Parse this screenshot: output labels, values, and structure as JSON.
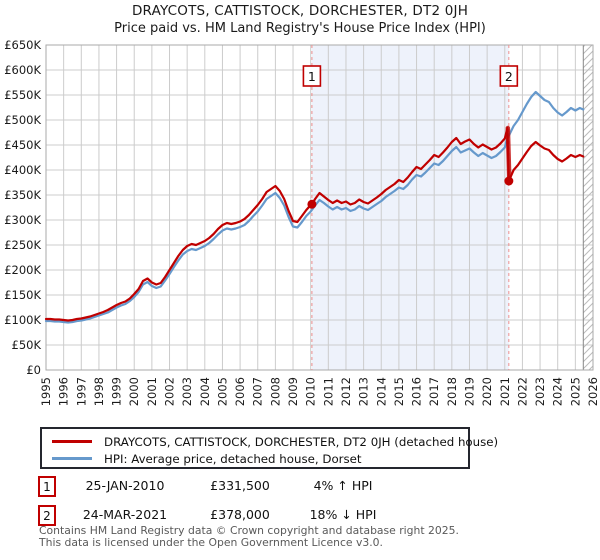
{
  "title": {
    "line1": "DRAYCOTS, CATTISTOCK, DORCHESTER, DT2 0JH",
    "line2": "Price paid vs. HM Land Registry's House Price Index (HPI)"
  },
  "legend": {
    "items": [
      {
        "label": "DRAYCOTS, CATTISTOCK, DORCHESTER, DT2 0JH (detached house)",
        "color": "#c00000"
      },
      {
        "label": "HPI: Average price, detached house, Dorset",
        "color": "#6699cc"
      }
    ]
  },
  "annotations": [
    {
      "index": "1",
      "date": "25-JAN-2010",
      "price": "£331,500",
      "hpi": "4% ↑ HPI"
    },
    {
      "index": "2",
      "date": "24-MAR-2021",
      "price": "£378,000",
      "hpi": "18% ↓ HPI"
    }
  ],
  "footer": {
    "line1": "Contains HM Land Registry data © Crown copyright and database right 2025.",
    "line2": "This data is licensed under the Open Government Licence v3.0."
  },
  "chart_data": {
    "type": "line",
    "title": "Price paid vs. HPI",
    "x_axis": {
      "range": [
        1995,
        2026
      ],
      "ticks": [
        1995,
        1996,
        1997,
        1998,
        1999,
        2000,
        2001,
        2002,
        2003,
        2004,
        2005,
        2006,
        2007,
        2008,
        2009,
        2010,
        2011,
        2012,
        2013,
        2014,
        2015,
        2016,
        2017,
        2018,
        2019,
        2020,
        2021,
        2022,
        2023,
        2024,
        2025,
        2026
      ]
    },
    "y_axis": {
      "unit": "GBP thousands",
      "range_k": [
        0,
        650
      ],
      "tick_step_k": 50,
      "tick_labels": [
        "£0",
        "£50K",
        "£100K",
        "£150K",
        "£200K",
        "£250K",
        "£300K",
        "£350K",
        "£400K",
        "£450K",
        "£500K",
        "£550K",
        "£600K",
        "£650K"
      ]
    },
    "grid": true,
    "legend_position": "bottom",
    "shaded_span": [
      2010.07,
      2021.23
    ],
    "future_span": [
      2025.45,
      2026
    ],
    "colors": {
      "grid": "#cccccc",
      "border": "#aaaaaa",
      "band": "#eef2fb",
      "dashed": "#ee8f8f",
      "hatch": "#bbbbbb",
      "hatch_edge": "#888888",
      "label": "#1a1a1a",
      "marker_text": "#111111"
    },
    "sales": [
      {
        "label": "1",
        "x": 2010.07,
        "y": 331.5
      },
      {
        "label": "2",
        "x": 2021.23,
        "y": 378,
        "spike_from": 484
      }
    ],
    "series": [
      {
        "name": "DRAYCOTS, CATTISTOCK, DORCHESTER, DT2 0JH (detached house)",
        "color": "#c00000",
        "points": [
          [
            1995.0,
            102
          ],
          [
            1995.25,
            102
          ],
          [
            1995.5,
            101
          ],
          [
            1995.75,
            101
          ],
          [
            1996.0,
            100
          ],
          [
            1996.25,
            99
          ],
          [
            1996.5,
            100
          ],
          [
            1996.75,
            102
          ],
          [
            1997.0,
            103
          ],
          [
            1997.25,
            105
          ],
          [
            1997.5,
            107
          ],
          [
            1997.75,
            110
          ],
          [
            1998.0,
            113
          ],
          [
            1998.25,
            116
          ],
          [
            1998.5,
            120
          ],
          [
            1998.75,
            125
          ],
          [
            1999.0,
            130
          ],
          [
            1999.25,
            134
          ],
          [
            1999.5,
            137
          ],
          [
            1999.75,
            143
          ],
          [
            2000.0,
            152
          ],
          [
            2000.25,
            162
          ],
          [
            2000.5,
            178
          ],
          [
            2000.75,
            183
          ],
          [
            2001.0,
            175
          ],
          [
            2001.25,
            171
          ],
          [
            2001.5,
            174
          ],
          [
            2001.75,
            186
          ],
          [
            2002.0,
            200
          ],
          [
            2002.25,
            214
          ],
          [
            2002.5,
            228
          ],
          [
            2002.75,
            240
          ],
          [
            2003.0,
            248
          ],
          [
            2003.25,
            252
          ],
          [
            2003.5,
            250
          ],
          [
            2003.75,
            254
          ],
          [
            2004.0,
            258
          ],
          [
            2004.25,
            264
          ],
          [
            2004.5,
            272
          ],
          [
            2004.75,
            282
          ],
          [
            2005.0,
            290
          ],
          [
            2005.25,
            294
          ],
          [
            2005.5,
            292
          ],
          [
            2005.75,
            294
          ],
          [
            2006.0,
            297
          ],
          [
            2006.25,
            302
          ],
          [
            2006.5,
            310
          ],
          [
            2006.75,
            320
          ],
          [
            2007.0,
            330
          ],
          [
            2007.25,
            342
          ],
          [
            2007.5,
            356
          ],
          [
            2007.75,
            362
          ],
          [
            2008.0,
            368
          ],
          [
            2008.25,
            358
          ],
          [
            2008.5,
            342
          ],
          [
            2008.75,
            318
          ],
          [
            2009.0,
            298
          ],
          [
            2009.25,
            296
          ],
          [
            2009.5,
            308
          ],
          [
            2009.75,
            320
          ],
          [
            2010.0,
            330
          ],
          [
            2010.07,
            331.5
          ],
          [
            2010.25,
            342
          ],
          [
            2010.5,
            354
          ],
          [
            2010.75,
            347
          ],
          [
            2011.0,
            340
          ],
          [
            2011.25,
            334
          ],
          [
            2011.5,
            339
          ],
          [
            2011.75,
            334
          ],
          [
            2012.0,
            337
          ],
          [
            2012.25,
            331
          ],
          [
            2012.5,
            334
          ],
          [
            2012.75,
            341
          ],
          [
            2013.0,
            336
          ],
          [
            2013.25,
            333
          ],
          [
            2013.5,
            339
          ],
          [
            2013.75,
            345
          ],
          [
            2014.0,
            352
          ],
          [
            2014.25,
            360
          ],
          [
            2014.5,
            366
          ],
          [
            2014.75,
            372
          ],
          [
            2015.0,
            380
          ],
          [
            2015.25,
            376
          ],
          [
            2015.5,
            385
          ],
          [
            2015.75,
            396
          ],
          [
            2016.0,
            406
          ],
          [
            2016.25,
            402
          ],
          [
            2016.5,
            411
          ],
          [
            2016.75,
            420
          ],
          [
            2017.0,
            430
          ],
          [
            2017.25,
            426
          ],
          [
            2017.5,
            435
          ],
          [
            2017.75,
            445
          ],
          [
            2018.0,
            456
          ],
          [
            2018.25,
            464
          ],
          [
            2018.5,
            452
          ],
          [
            2018.75,
            457
          ],
          [
            2019.0,
            461
          ],
          [
            2019.25,
            452
          ],
          [
            2019.5,
            445
          ],
          [
            2019.75,
            451
          ],
          [
            2020.0,
            446
          ],
          [
            2020.25,
            441
          ],
          [
            2020.5,
            445
          ],
          [
            2020.75,
            453
          ],
          [
            2021.0,
            463
          ],
          [
            2021.15,
            484
          ],
          [
            2021.23,
            378
          ],
          [
            2021.5,
            400
          ],
          [
            2021.75,
            410
          ],
          [
            2022.0,
            423
          ],
          [
            2022.25,
            436
          ],
          [
            2022.5,
            448
          ],
          [
            2022.75,
            456
          ],
          [
            2023.0,
            449
          ],
          [
            2023.25,
            443
          ],
          [
            2023.5,
            440
          ],
          [
            2023.75,
            430
          ],
          [
            2024.0,
            422
          ],
          [
            2024.25,
            417
          ],
          [
            2024.5,
            423
          ],
          [
            2024.75,
            430
          ],
          [
            2025.0,
            426
          ],
          [
            2025.25,
            430
          ],
          [
            2025.45,
            427
          ]
        ]
      },
      {
        "name": "HPI: Average price, detached house, Dorset",
        "color": "#6699cc",
        "points": [
          [
            1995.0,
            98
          ],
          [
            1995.25,
            98
          ],
          [
            1995.5,
            97
          ],
          [
            1995.75,
            97
          ],
          [
            1996.0,
            96
          ],
          [
            1996.25,
            95
          ],
          [
            1996.5,
            96
          ],
          [
            1996.75,
            98
          ],
          [
            1997.0,
            99
          ],
          [
            1997.25,
            101
          ],
          [
            1997.5,
            103
          ],
          [
            1997.75,
            106
          ],
          [
            1998.0,
            109
          ],
          [
            1998.25,
            112
          ],
          [
            1998.5,
            115
          ],
          [
            1998.75,
            120
          ],
          [
            1999.0,
            125
          ],
          [
            1999.25,
            129
          ],
          [
            1999.5,
            132
          ],
          [
            1999.75,
            138
          ],
          [
            2000.0,
            146
          ],
          [
            2000.25,
            156
          ],
          [
            2000.5,
            171
          ],
          [
            2000.75,
            176
          ],
          [
            2001.0,
            168
          ],
          [
            2001.25,
            164
          ],
          [
            2001.5,
            167
          ],
          [
            2001.75,
            179
          ],
          [
            2002.0,
            192
          ],
          [
            2002.25,
            206
          ],
          [
            2002.5,
            219
          ],
          [
            2002.75,
            231
          ],
          [
            2003.0,
            238
          ],
          [
            2003.25,
            242
          ],
          [
            2003.5,
            240
          ],
          [
            2003.75,
            244
          ],
          [
            2004.0,
            248
          ],
          [
            2004.25,
            254
          ],
          [
            2004.5,
            262
          ],
          [
            2004.75,
            271
          ],
          [
            2005.0,
            279
          ],
          [
            2005.25,
            283
          ],
          [
            2005.5,
            281
          ],
          [
            2005.75,
            283
          ],
          [
            2006.0,
            286
          ],
          [
            2006.25,
            290
          ],
          [
            2006.5,
            298
          ],
          [
            2006.75,
            308
          ],
          [
            2007.0,
            317
          ],
          [
            2007.25,
            329
          ],
          [
            2007.5,
            342
          ],
          [
            2007.75,
            348
          ],
          [
            2008.0,
            354
          ],
          [
            2008.25,
            344
          ],
          [
            2008.5,
            329
          ],
          [
            2008.75,
            306
          ],
          [
            2009.0,
            287
          ],
          [
            2009.25,
            285
          ],
          [
            2009.5,
            296
          ],
          [
            2009.75,
            308
          ],
          [
            2010.0,
            317
          ],
          [
            2010.25,
            329
          ],
          [
            2010.5,
            340
          ],
          [
            2010.75,
            334
          ],
          [
            2011.0,
            327
          ],
          [
            2011.25,
            321
          ],
          [
            2011.5,
            326
          ],
          [
            2011.75,
            321
          ],
          [
            2012.0,
            324
          ],
          [
            2012.25,
            318
          ],
          [
            2012.5,
            321
          ],
          [
            2012.75,
            328
          ],
          [
            2013.0,
            323
          ],
          [
            2013.25,
            320
          ],
          [
            2013.5,
            326
          ],
          [
            2013.75,
            332
          ],
          [
            2014.0,
            338
          ],
          [
            2014.25,
            346
          ],
          [
            2014.5,
            352
          ],
          [
            2014.75,
            358
          ],
          [
            2015.0,
            365
          ],
          [
            2015.25,
            362
          ],
          [
            2015.5,
            370
          ],
          [
            2015.75,
            381
          ],
          [
            2016.0,
            390
          ],
          [
            2016.25,
            387
          ],
          [
            2016.5,
            395
          ],
          [
            2016.75,
            404
          ],
          [
            2017.0,
            413
          ],
          [
            2017.25,
            410
          ],
          [
            2017.5,
            418
          ],
          [
            2017.75,
            428
          ],
          [
            2018.0,
            438
          ],
          [
            2018.25,
            446
          ],
          [
            2018.5,
            435
          ],
          [
            2018.75,
            439
          ],
          [
            2019.0,
            443
          ],
          [
            2019.25,
            435
          ],
          [
            2019.5,
            428
          ],
          [
            2019.75,
            434
          ],
          [
            2020.0,
            429
          ],
          [
            2020.25,
            424
          ],
          [
            2020.5,
            428
          ],
          [
            2020.75,
            436
          ],
          [
            2021.0,
            445
          ],
          [
            2021.15,
            465
          ],
          [
            2021.25,
            470
          ],
          [
            2021.5,
            488
          ],
          [
            2021.75,
            500
          ],
          [
            2022.0,
            516
          ],
          [
            2022.25,
            532
          ],
          [
            2022.5,
            546
          ],
          [
            2022.75,
            556
          ],
          [
            2023.0,
            548
          ],
          [
            2023.25,
            540
          ],
          [
            2023.5,
            536
          ],
          [
            2023.75,
            524
          ],
          [
            2024.0,
            515
          ],
          [
            2024.25,
            509
          ],
          [
            2024.5,
            516
          ],
          [
            2024.75,
            524
          ],
          [
            2025.0,
            519
          ],
          [
            2025.25,
            524
          ],
          [
            2025.45,
            521
          ]
        ]
      }
    ]
  }
}
